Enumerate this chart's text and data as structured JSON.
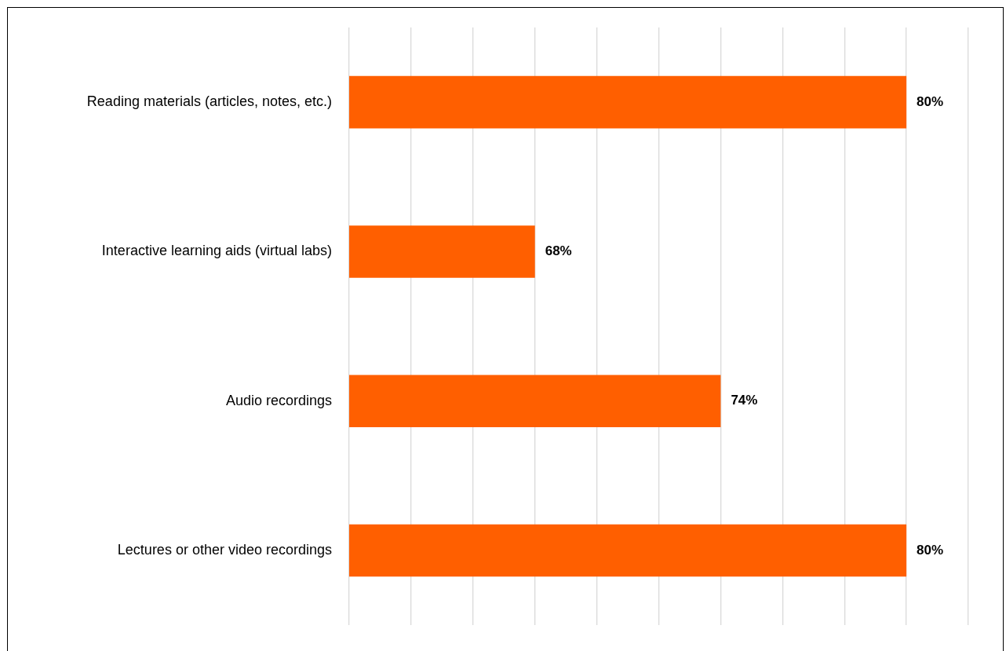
{
  "chart_data": {
    "type": "bar",
    "orientation": "horizontal",
    "categories": [
      "Reading materials (articles, notes, etc.)",
      "Interactive learning aids (virtual labs)",
      "Audio recordings",
      "Lectures or other video recordings"
    ],
    "values": [
      80,
      68,
      74,
      80
    ],
    "value_labels": [
      "80%",
      "68%",
      "74%",
      "80%"
    ],
    "color": "#ff5f00",
    "xlim": [
      62,
      82
    ],
    "xticks": [
      {
        "value": 62,
        "label": null
      },
      {
        "value": 64,
        "label": null
      },
      {
        "value": 66,
        "label": null
      },
      {
        "value": 68,
        "label": null
      },
      {
        "value": 70,
        "label": null
      },
      {
        "value": 72,
        "label": null
      },
      {
        "value": 74,
        "label": null
      },
      {
        "value": 76,
        "label": null
      },
      {
        "value": 78,
        "label": null
      },
      {
        "value": 80,
        "label": null
      },
      {
        "value": 82,
        "label": null
      }
    ],
    "grid": "x",
    "tick_labels": "y"
  }
}
